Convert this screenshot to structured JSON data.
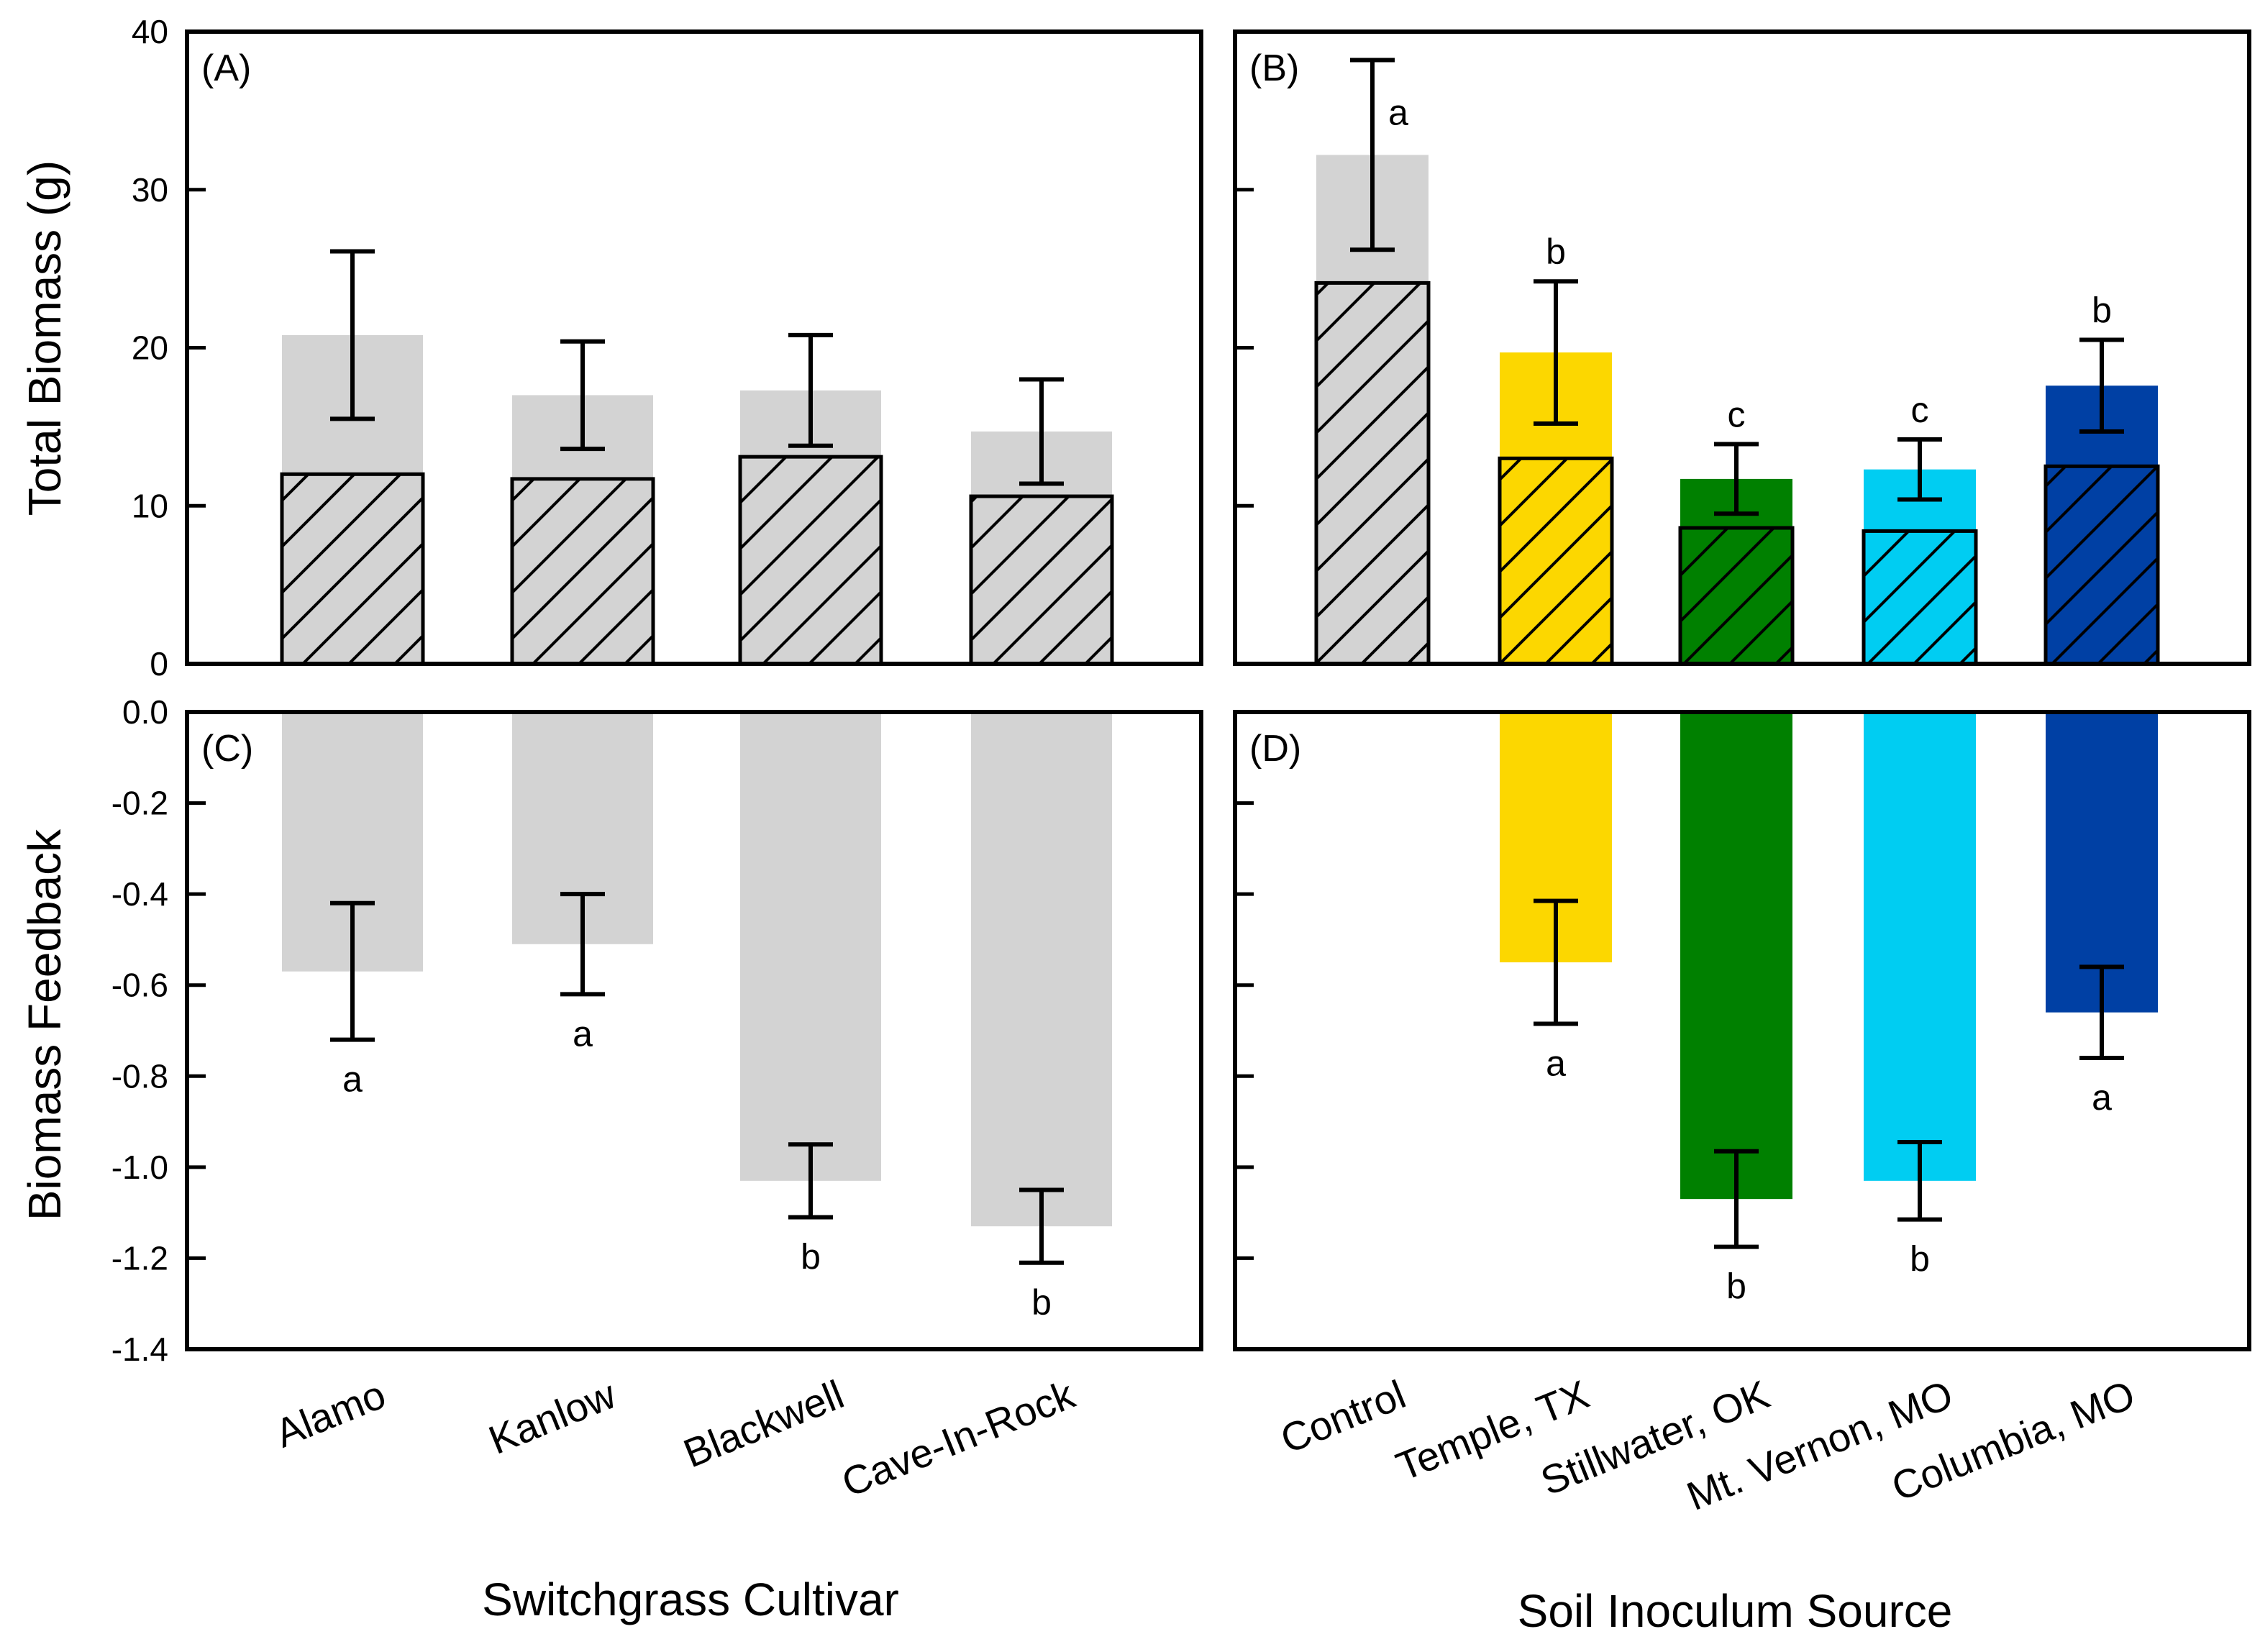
{
  "figure": {
    "ylabel_top": "Total Biomass (g)",
    "ylabel_bottom": "Biomass Feedback",
    "xlabel_left": "Switchgrass Cultivar",
    "xlabel_right": "Soil Inoculum Source"
  },
  "colors": {
    "grey": "#d3d3d3",
    "yellow": "#fcd700",
    "green": "#008000",
    "lightblue": "#00cdf2",
    "darkblue": "#0040a4"
  },
  "chart_data": [
    {
      "type": "bar",
      "panel": "(A)",
      "categories": [
        "Alamo",
        "Kanlow",
        "Blackwell",
        "Cave-In-Rock"
      ],
      "colors": [
        "#d3d3d3",
        "#d3d3d3",
        "#d3d3d3",
        "#d3d3d3"
      ],
      "series": [
        {
          "name": "Total biomass (solid)",
          "values": [
            20.8,
            17.0,
            17.3,
            14.7
          ],
          "errors": [
            5.3,
            3.4,
            3.5,
            3.3
          ]
        },
        {
          "name": "Hatched portion",
          "values": [
            12.0,
            11.7,
            13.1,
            10.6
          ]
        }
      ],
      "letters": [],
      "ylim": [
        0,
        40
      ],
      "yticks": [
        0,
        10,
        20,
        30,
        40
      ],
      "ylabel": "Total Biomass (g)"
    },
    {
      "type": "bar",
      "panel": "(B)",
      "categories": [
        "Control",
        "Temple, TX",
        "Stillwater, OK",
        "Mt. Vernon, MO",
        "Columbia, MO"
      ],
      "colors": [
        "#d3d3d3",
        "#fcd700",
        "#008000",
        "#00cdf2",
        "#0040a4"
      ],
      "series": [
        {
          "name": "Total biomass (solid)",
          "values": [
            32.2,
            19.7,
            11.7,
            12.3,
            17.6
          ],
          "errors": [
            6.0,
            4.5,
            2.2,
            1.9,
            2.9
          ]
        },
        {
          "name": "Hatched portion",
          "values": [
            24.1,
            13.0,
            8.6,
            8.4,
            12.5
          ]
        }
      ],
      "letters": [
        "a",
        "b",
        "c",
        "c",
        "b"
      ],
      "ylim": [
        0,
        40
      ],
      "yticks": [
        0,
        10,
        20,
        30,
        40
      ],
      "ylabel": "Total Biomass (g)"
    },
    {
      "type": "bar",
      "panel": "(C)",
      "categories": [
        "Alamo",
        "Kanlow",
        "Blackwell",
        "Cave-In-Rock"
      ],
      "colors": [
        "#d3d3d3",
        "#d3d3d3",
        "#d3d3d3",
        "#d3d3d3"
      ],
      "series": [
        {
          "name": "Biomass feedback",
          "values": [
            -0.57,
            -0.51,
            -1.03,
            -1.13
          ],
          "errors": [
            0.15,
            0.11,
            0.08,
            0.08
          ]
        }
      ],
      "letters": [
        "a",
        "a",
        "b",
        "b"
      ],
      "ylim": [
        -1.4,
        0.0
      ],
      "yticks": [
        -1.4,
        -1.2,
        -1.0,
        -0.8,
        -0.6,
        -0.4,
        -0.2,
        0.0
      ],
      "ytick_labels": [
        "-1.4",
        "-1.2",
        "-1.0",
        "-0.8",
        "-0.6",
        "-0.4",
        "-0.2",
        "0.0"
      ],
      "ylabel": "Biomass Feedback",
      "xlabel": "Switchgrass Cultivar"
    },
    {
      "type": "bar",
      "panel": "(D)",
      "categories": [
        "Control",
        "Temple, TX",
        "Stillwater, OK",
        "Mt. Vernon, MO",
        "Columbia, MO"
      ],
      "colors": [
        "#d3d3d3",
        "#fcd700",
        "#008000",
        "#00cdf2",
        "#0040a4"
      ],
      "series": [
        {
          "name": "Biomass feedback",
          "values": [
            null,
            -0.55,
            -1.07,
            -1.03,
            -0.66
          ],
          "errors": [
            null,
            0.135,
            0.105,
            0.085,
            0.1
          ]
        }
      ],
      "letters": [
        "",
        "a",
        "b",
        "b",
        "a"
      ],
      "ylim": [
        -1.4,
        0.0
      ],
      "yticks": [
        -1.4,
        -1.2,
        -1.0,
        -0.8,
        -0.6,
        -0.4,
        -0.2,
        0.0
      ],
      "ylabel": "Biomass Feedback",
      "xlabel": "Soil Inoculum Source"
    }
  ]
}
